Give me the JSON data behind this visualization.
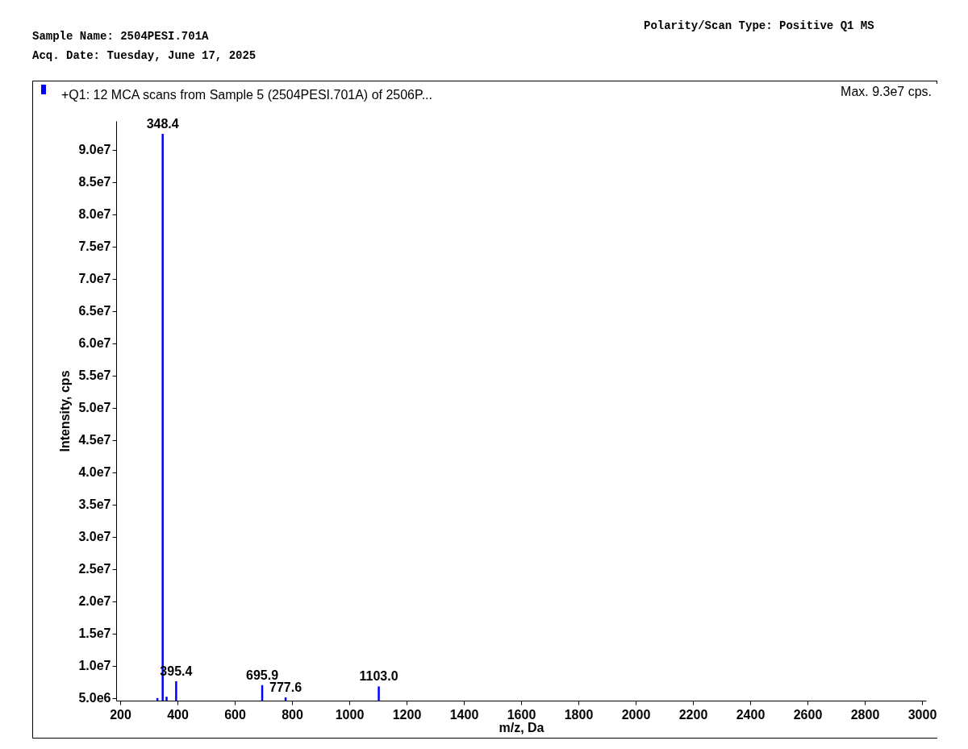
{
  "chart_data": {
    "type": "bar",
    "title": "+Q1: 12 MCA scans from Sample 5 (2504PESI.701A) of 2506P...",
    "xlabel": "m/z, Da",
    "ylabel": "Intensity, cps",
    "x": [
      330.0,
      348.4,
      362.0,
      395.4,
      695.9,
      777.6,
      1103.0
    ],
    "series": [
      {
        "color": "#0000ff",
        "values": [
          5000000.0,
          92500000.0,
          5200000.0,
          7600000.0,
          7000000.0,
          5100000.0,
          6800000.0
        ]
      }
    ],
    "xlim": [
      200,
      3000
    ],
    "xticks": [
      200,
      400,
      600,
      800,
      1000,
      1200,
      1400,
      1600,
      1800,
      2000,
      2200,
      2400,
      2600,
      2800,
      3000
    ],
    "ylim": [
      4600000.0,
      94500000.0
    ],
    "yticks": [
      {
        "value": 5000000.0,
        "label": "5.0e6"
      },
      {
        "value": 10000000.0,
        "label": "1.0e7"
      },
      {
        "value": 15000000.0,
        "label": "1.5e7"
      },
      {
        "value": 20000000.0,
        "label": "2.0e7"
      },
      {
        "value": 25000000.0,
        "label": "2.5e7"
      },
      {
        "value": 30000000.0,
        "label": "3.0e7"
      },
      {
        "value": 35000000.0,
        "label": "3.5e7"
      },
      {
        "value": 40000000.0,
        "label": "4.0e7"
      },
      {
        "value": 45000000.0,
        "label": "4.5e7"
      },
      {
        "value": 50000000.0,
        "label": "5.0e7"
      },
      {
        "value": 55000000.0,
        "label": "5.5e7"
      },
      {
        "value": 60000000.0,
        "label": "6.0e7"
      },
      {
        "value": 65000000.0,
        "label": "6.5e7"
      },
      {
        "value": 70000000.0,
        "label": "7.0e7"
      },
      {
        "value": 75000000.0,
        "label": "7.5e7"
      },
      {
        "value": 80000000.0,
        "label": "8.0e7"
      },
      {
        "value": 85000000.0,
        "label": "8.5e7"
      },
      {
        "value": 90000000.0,
        "label": "9.0e7"
      }
    ],
    "grid": false,
    "legend": false,
    "annotations": [
      {
        "text": "348.4",
        "x": 348.4,
        "y": 92500000.0
      },
      {
        "text": "395.4",
        "x": 395.4,
        "y": 7600000.0
      },
      {
        "text": "695.9",
        "x": 695.9,
        "y": 7000000.0
      },
      {
        "text": "777.6",
        "x": 777.6,
        "y": 5100000.0
      },
      {
        "text": "1103.0",
        "x": 1103.0,
        "y": 6800000.0
      },
      "Sample Name: 2504PESI.701A",
      "Acq. Date: Tuesday, June 17, 2025",
      "Polarity/Scan Type: Positive Q1 MS",
      "Max. 9.3e7 cps."
    ]
  }
}
